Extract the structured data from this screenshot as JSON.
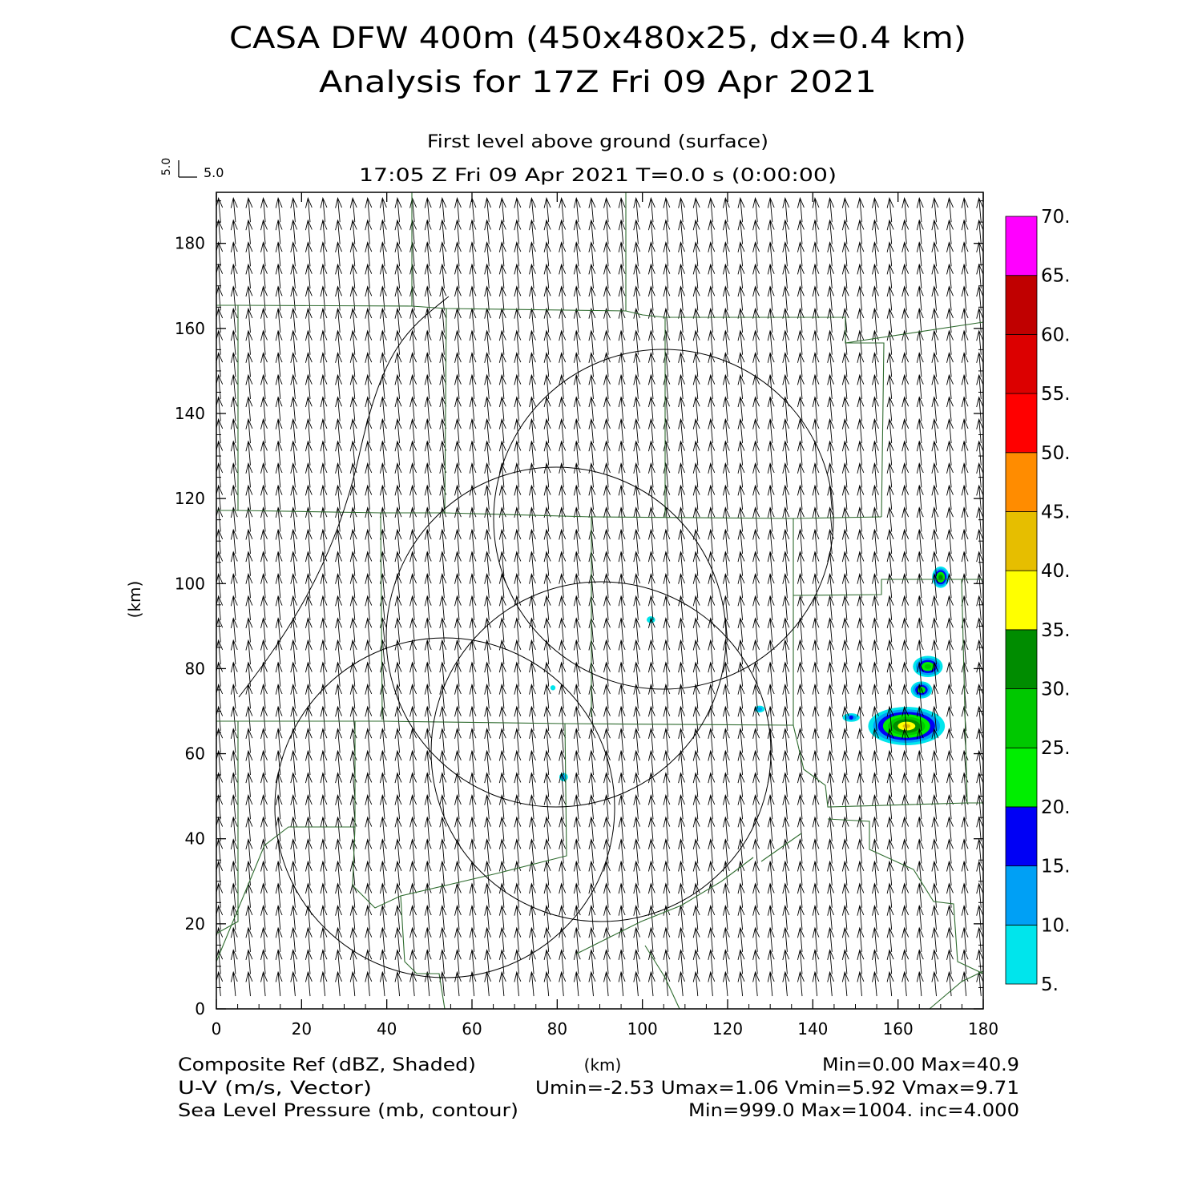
{
  "header": {
    "title_line1": "CASA DFW 400m (450x480x25, dx=0.4 km)",
    "title_line2": "Analysis for 17Z Fri 09 Apr 2021",
    "level": "First level above ground (surface)",
    "time": "17:05 Z Fri 09 Apr 2021    T=0.0 s (0:00:00)"
  },
  "vector_key": {
    "v_label": "5.0",
    "u_label": "5.0"
  },
  "footer": {
    "field1_name": "Composite Ref (dBZ, Shaded)",
    "field1_stats": "Min=0.00 Max=40.9",
    "field2_name": "U-V (m/s, Vector)",
    "field2_stats": "Umin=-2.53 Umax=1.06 Vmin=5.92 Vmax=9.71",
    "field3_name": "Sea Level Pressure (mb, contour)",
    "field3_stats": "Min=999.0 Max=1004. inc=4.000"
  },
  "chart_data": {
    "type": "heatmap",
    "xlabel": "(km)",
    "ylabel": "(km)",
    "xlim": [
      0,
      180
    ],
    "ylim": [
      0,
      192
    ],
    "x_ticks": [
      0,
      20,
      40,
      60,
      80,
      100,
      120,
      140,
      160,
      180
    ],
    "y_ticks": [
      0,
      20,
      40,
      60,
      80,
      100,
      120,
      140,
      160,
      180
    ],
    "wind_vector": {
      "u": -0.7,
      "v": 7.8
    },
    "colorbar": {
      "levels": [
        "5.",
        "10.",
        "15.",
        "20.",
        "25.",
        "30.",
        "35.",
        "40.",
        "45.",
        "50.",
        "55.",
        "60.",
        "65.",
        "70."
      ],
      "colors": [
        "#00e5ec",
        "#00a0f5",
        "#0000f5",
        "#00ee00",
        "#00c800",
        "#008c00",
        "#ffff00",
        "#e6be00",
        "#ff8c00",
        "#ff0000",
        "#dc0000",
        "#c00000",
        "#ff00ff"
      ]
    },
    "reflectivity_cells": [
      {
        "x": 162,
        "y": 66.5,
        "rx": 9,
        "ry": 4.5,
        "max": 40.9
      },
      {
        "x": 149,
        "y": 68.5,
        "rx": 2,
        "ry": 1,
        "max": 15
      },
      {
        "x": 167,
        "y": 80.5,
        "rx": 3.5,
        "ry": 2.5,
        "max": 28
      },
      {
        "x": 165.5,
        "y": 75,
        "rx": 2.5,
        "ry": 2,
        "max": 26
      },
      {
        "x": 170,
        "y": 101.5,
        "rx": 2,
        "ry": 2.5,
        "max": 32
      },
      {
        "x": 102,
        "y": 91.5,
        "rx": 1,
        "ry": 0.8,
        "max": 8
      },
      {
        "x": 79,
        "y": 75.5,
        "rx": 0.6,
        "ry": 0.6,
        "max": 7
      },
      {
        "x": 81.5,
        "y": 54.5,
        "rx": 1,
        "ry": 1,
        "max": 14
      },
      {
        "x": 127.5,
        "y": 70.5,
        "rx": 1.2,
        "ry": 0.8,
        "max": 12
      }
    ]
  }
}
